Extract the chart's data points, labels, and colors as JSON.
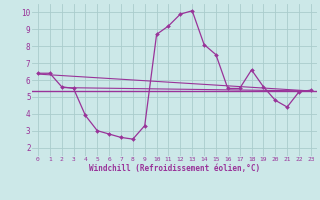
{
  "xlabel": "Windchill (Refroidissement éolien,°C)",
  "x_values": [
    0,
    1,
    2,
    3,
    4,
    5,
    6,
    7,
    8,
    9,
    10,
    11,
    12,
    13,
    14,
    15,
    16,
    17,
    18,
    19,
    20,
    21,
    22,
    23
  ],
  "y_main": [
    6.4,
    6.4,
    5.6,
    5.5,
    3.9,
    3.0,
    2.8,
    2.6,
    2.5,
    3.3,
    8.7,
    9.2,
    9.9,
    10.1,
    8.1,
    7.5,
    5.5,
    5.5,
    6.6,
    5.6,
    4.8,
    4.4,
    5.3,
    5.4
  ],
  "trend1_x": [
    0,
    23
  ],
  "trend1_y": [
    6.35,
    5.35
  ],
  "trend2_x": [
    2,
    23
  ],
  "trend2_y": [
    5.55,
    5.35
  ],
  "hline_y": 5.35,
  "bg_color": "#cce8e8",
  "grid_color": "#aacccc",
  "line_color": "#993399",
  "marker_color": "#993399",
  "trend_color": "#993399",
  "hline_color": "#993399",
  "text_color": "#993399",
  "xlim": [
    -0.5,
    23.5
  ],
  "ylim": [
    1.5,
    10.5
  ],
  "yticks": [
    2,
    3,
    4,
    5,
    6,
    7,
    8,
    9,
    10
  ],
  "xticks": [
    0,
    1,
    2,
    3,
    4,
    5,
    6,
    7,
    8,
    9,
    10,
    11,
    12,
    13,
    14,
    15,
    16,
    17,
    18,
    19,
    20,
    21,
    22,
    23
  ],
  "xtick_labels": [
    "0",
    "1",
    "2",
    "3",
    "4",
    "5",
    "6",
    "7",
    "8",
    "9",
    "10",
    "11",
    "12",
    "13",
    "14",
    "15",
    "16",
    "17",
    "18",
    "19",
    "20",
    "21",
    "22",
    "23"
  ]
}
